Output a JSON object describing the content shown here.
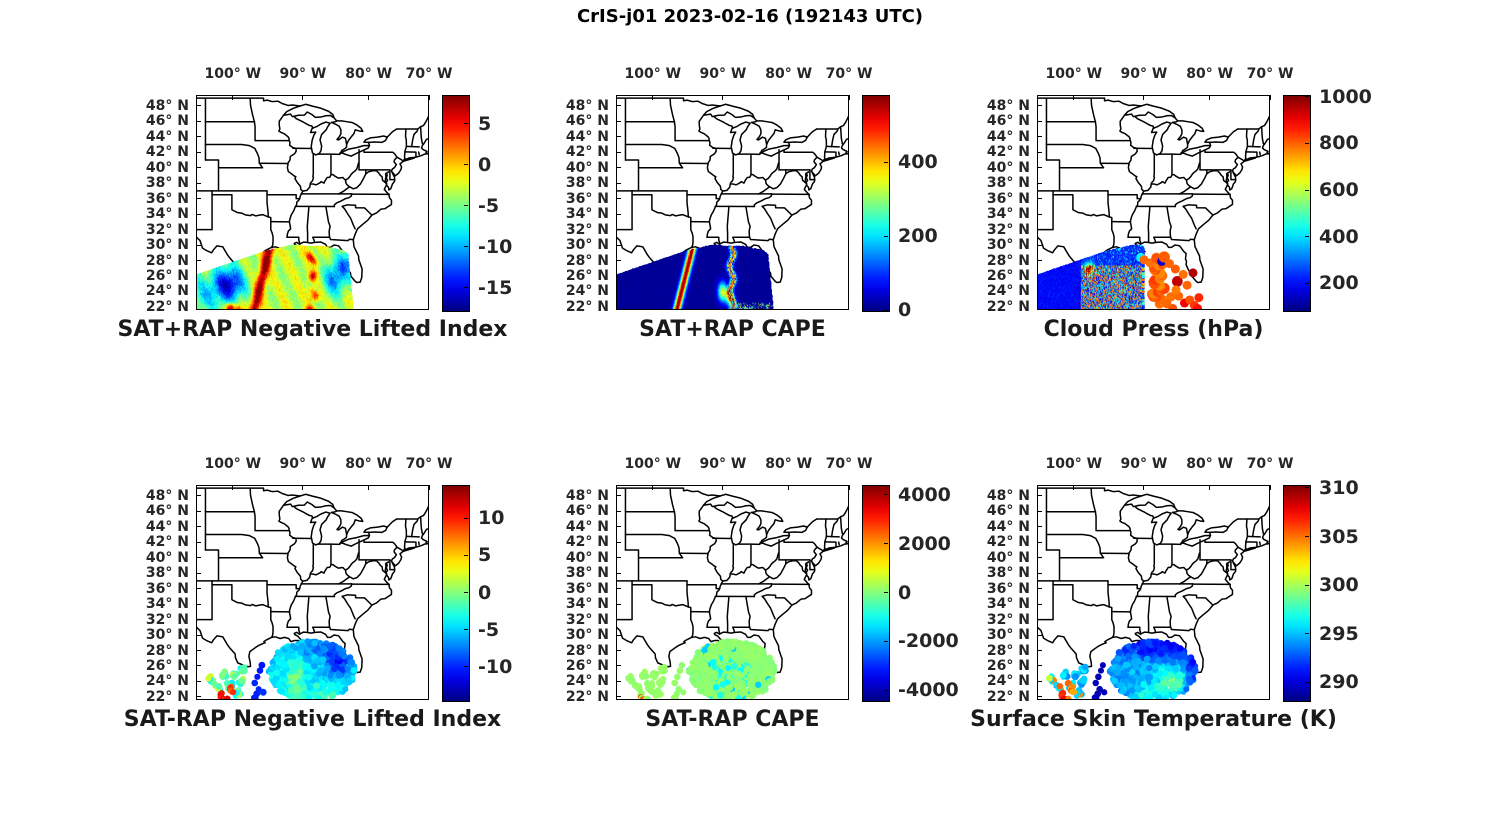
{
  "figure": {
    "title": "CrIS-j01 2023-02-16 (192143 UTC)",
    "background": "#ffffff",
    "line_color": "#000000"
  },
  "axes": {
    "lon_tick_labels": [
      "100° W",
      "90° W",
      "80° W",
      "70° W"
    ],
    "lat_tick_labels": [
      "48° N",
      "46° N",
      "44° N",
      "42° N",
      "40° N",
      "38° N",
      "36° N",
      "34° N",
      "32° N",
      "30° N",
      "28° N",
      "26° N",
      "24° N",
      "22° N"
    ],
    "lon_ticks_deg": [
      -100,
      -90,
      -80,
      -70
    ],
    "lat_ticks_deg": [
      48,
      46,
      44,
      42,
      40,
      38,
      36,
      34,
      32,
      30,
      28,
      26,
      24,
      22
    ],
    "map_extent": {
      "lon": [
        -105.5,
        -69.8
      ],
      "lat": [
        21.6,
        49.4
      ]
    }
  },
  "chart_data": [
    {
      "panel": 1,
      "row": 0,
      "col": 0,
      "title": "SAT+RAP Negative Lifted Index",
      "type": "scatter",
      "colormap": "jet",
      "marker": "filled-circle",
      "marker_radius_px": 1.5,
      "colorbar_ticks": [
        5,
        0,
        -5,
        -10,
        -15
      ],
      "colorbar_range": [
        -17.7,
        8.5
      ],
      "footprint": "dense CrIS swath over Gulf of Mexico, lon -105.2 to -81.6, lat 21.7 to ~30 (top edge rises from 26N at west to ~29.9N near 91W)",
      "features": "red streak (LI ~ +6) near 95W from coast down to 22N; patchy orange streak near 87.5W; dark-blue minimum (~ -15) centered near 100W 25N; blue patches near 84W 26N and 82.4W 27.6N; small red spots near 100W 22N; yellow-green background (~ -2 to -5)"
    },
    {
      "panel": 2,
      "row": 0,
      "col": 1,
      "title": "SAT+RAP CAPE",
      "type": "scatter",
      "colormap": "jet",
      "marker": "filled-circle",
      "marker_radius_px": 1.5,
      "colorbar_ticks": [
        400,
        200,
        0
      ],
      "colorbar_range": [
        0,
        583
      ],
      "footprint": "same CrIS swath as panel 1",
      "features": "mostly near-zero CAPE (dark blue); narrow dark-red streak (>550) near 94.5W from coast to 22N; patchy red/orange cells near 89-87.5W 23-27N; green/cyan speckles along bottom edge near 87-82W 22N"
    },
    {
      "panel": 3,
      "row": 0,
      "col": 2,
      "title": "Cloud Press (hPa)",
      "type": "scatter",
      "colormap": "jet",
      "marker": "filled-circle",
      "marker_radius_px": 1.5,
      "big_marker_radius_px": 4.5,
      "colorbar_ticks": [
        1000,
        800,
        600,
        400,
        200
      ],
      "colorbar_range": [
        85,
        1008
      ],
      "footprint": "swath points for lon < -89.2 plus cluster of large dots lon -89.6 to -80.9, lat 21.8-28.5",
      "features": "west half of swath high cloud (blue ~200 hPa); chaotic mixed cyan/orange low-cloud cells 98-90W below 27.5N; orange blob on south-Texas coast near 97.3W 27N; eastern cluster of large low-cloud dots (~800 hPa, few ~950 dark red, one ~150 blue) between 89W and 81W"
    },
    {
      "panel": 4,
      "row": 1,
      "col": 0,
      "title": "SAT-RAP Negative Lifted Index",
      "type": "scatter",
      "colormap": "jet",
      "marker": "filled-circle",
      "marker_radius_px": 3.2,
      "colorbar_ticks": [
        10,
        5,
        0,
        -5,
        -10
      ],
      "colorbar_range": [
        -14.5,
        14.5
      ],
      "footprint": "blob of footprints lon -95 to -81, lat 21.7-29.4, plus sparse clumps lon -104 to -97.8, lat 21.8-26.5",
      "features": "mostly cyan/blue differences (-3 to -6); dark-blue region (~ -10) near 84W 26.5N; yellow-green band near 90.5W; green band along bottom; orange/red arcs (+8 to +12) near 101W 22N; navy dots (~ -10) along west edge near 96W; lone yellow-green dot near 103.6W 24.4N"
    },
    {
      "panel": 5,
      "row": 1,
      "col": 1,
      "title": "SAT-RAP CAPE",
      "type": "scatter",
      "colormap": "jet",
      "marker": "filled-circle",
      "marker_radius_px": 3.2,
      "colorbar_ticks": [
        4000,
        2000,
        0,
        -2000,
        -4000
      ],
      "colorbar_range": [
        -4400,
        4400
      ],
      "footprint": "same footprints as panel 4",
      "features": "differences near zero (light green ~ +100) almost everywhere; scattered cyan cells (~ -900) between 91W and 85.5W; two small orange dots (~ +2600) near 100.5W 21.9N"
    },
    {
      "panel": 6,
      "row": 1,
      "col": 2,
      "title": "Surface Skin Temperature (K)",
      "type": "scatter",
      "colormap": "jet",
      "marker": "filled-circle",
      "marker_radius_px": 3.2,
      "colorbar_ticks": [
        310,
        305,
        300,
        295,
        290
      ],
      "colorbar_range": [
        288.2,
        310.3
      ],
      "footprint": "same footprints as panel 4",
      "features": "gulf waters cyan 294-296 K; blue band (~291 K) along north edge of blob; green-yellow patch (~299-300 K) near 85W 24N; navy dots (~289 K) along west edge near 96W; warm orange/dark-red arcs (304-308 K) near 101-99W 22-23N; yellow dot (~301 K) near 103.6W 24.4N"
    }
  ]
}
